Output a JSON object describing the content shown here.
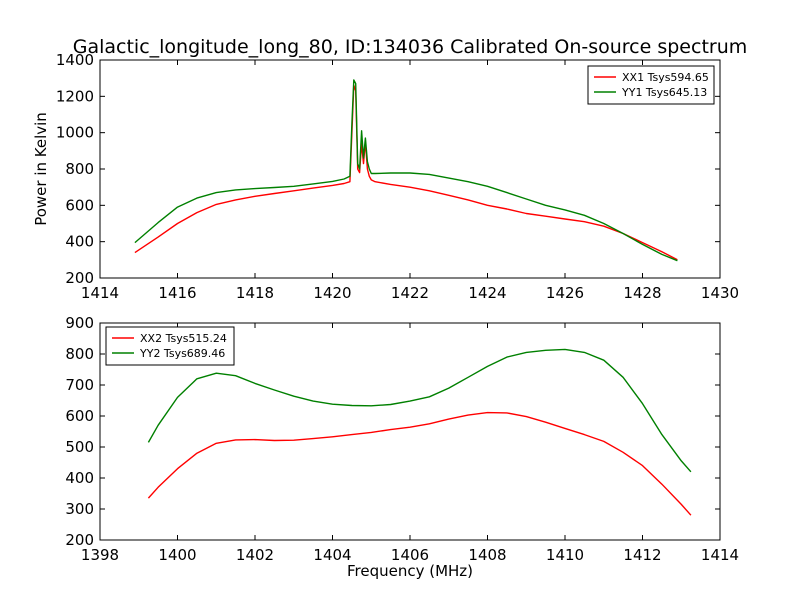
{
  "title": "Galactic_longitude_long_80, ID:134036 Calibrated On-source spectrum",
  "chart_data": [
    {
      "type": "line",
      "ylabel": "Power in Kelvin",
      "xlabel": "",
      "xlim": [
        1414,
        1430
      ],
      "ylim": [
        200,
        1400
      ],
      "xticks": [
        1414,
        1416,
        1418,
        1420,
        1422,
        1424,
        1426,
        1428,
        1430
      ],
      "yticks": [
        200,
        400,
        600,
        800,
        1000,
        1200,
        1400
      ],
      "legend_position": "top-right",
      "series": [
        {
          "name": "XX1 Tsys594.65",
          "color": "#ff0000",
          "x": [
            1414.9,
            1415.5,
            1416.0,
            1416.5,
            1417.0,
            1417.5,
            1418.0,
            1418.5,
            1419.0,
            1419.5,
            1420.0,
            1420.3,
            1420.45,
            1420.5,
            1420.55,
            1420.6,
            1420.65,
            1420.7,
            1420.75,
            1420.8,
            1420.85,
            1420.9,
            1420.95,
            1421.0,
            1421.1,
            1421.5,
            1422.0,
            1422.5,
            1423.0,
            1423.5,
            1424.0,
            1424.5,
            1425.0,
            1425.5,
            1426.0,
            1426.5,
            1427.0,
            1427.5,
            1428.0,
            1428.5,
            1428.9
          ],
          "y": [
            340,
            425,
            500,
            560,
            605,
            630,
            650,
            665,
            680,
            695,
            710,
            720,
            730,
            1000,
            1260,
            1230,
            800,
            780,
            940,
            830,
            950,
            800,
            760,
            740,
            730,
            715,
            700,
            680,
            655,
            630,
            600,
            580,
            555,
            540,
            525,
            510,
            485,
            445,
            395,
            345,
            300
          ]
        },
        {
          "name": "YY1 Tsys645.13",
          "color": "#008000",
          "x": [
            1414.9,
            1415.5,
            1416.0,
            1416.5,
            1417.0,
            1417.5,
            1418.0,
            1418.5,
            1419.0,
            1419.5,
            1420.0,
            1420.3,
            1420.45,
            1420.5,
            1420.55,
            1420.6,
            1420.65,
            1420.7,
            1420.75,
            1420.8,
            1420.85,
            1420.9,
            1420.95,
            1421.0,
            1421.1,
            1421.5,
            1422.0,
            1422.5,
            1423.0,
            1423.5,
            1424.0,
            1424.5,
            1425.0,
            1425.5,
            1426.0,
            1426.5,
            1427.0,
            1427.5,
            1428.0,
            1428.5,
            1428.9
          ],
          "y": [
            395,
            505,
            590,
            640,
            670,
            685,
            692,
            698,
            705,
            718,
            732,
            745,
            760,
            1050,
            1290,
            1270,
            830,
            800,
            1010,
            860,
            970,
            840,
            800,
            775,
            775,
            778,
            778,
            770,
            750,
            730,
            705,
            670,
            635,
            600,
            575,
            545,
            500,
            445,
            385,
            330,
            295
          ]
        }
      ]
    },
    {
      "type": "line",
      "ylabel": "",
      "xlabel": "Frequency (MHz)",
      "xlim": [
        1398,
        1414
      ],
      "ylim": [
        200,
        900
      ],
      "xticks": [
        1398,
        1400,
        1402,
        1404,
        1406,
        1408,
        1410,
        1412,
        1414
      ],
      "yticks": [
        200,
        300,
        400,
        500,
        600,
        700,
        800,
        900
      ],
      "legend_position": "top-left",
      "series": [
        {
          "name": "XX2 Tsys515.24",
          "color": "#ff0000",
          "x": [
            1399.25,
            1399.5,
            1400.0,
            1400.5,
            1401.0,
            1401.5,
            1402.0,
            1402.5,
            1403.0,
            1403.5,
            1404.0,
            1404.5,
            1405.0,
            1405.5,
            1406.0,
            1406.5,
            1407.0,
            1407.5,
            1408.0,
            1408.5,
            1409.0,
            1409.5,
            1410.0,
            1410.5,
            1411.0,
            1411.5,
            1412.0,
            1412.5,
            1413.0,
            1413.25
          ],
          "y": [
            335,
            370,
            430,
            480,
            512,
            523,
            524,
            521,
            522,
            527,
            533,
            540,
            547,
            556,
            564,
            575,
            590,
            603,
            611,
            610,
            598,
            580,
            560,
            540,
            518,
            483,
            440,
            380,
            315,
            280
          ]
        },
        {
          "name": "YY2 Tsys689.46",
          "color": "#008000",
          "x": [
            1399.25,
            1399.5,
            1400.0,
            1400.5,
            1401.0,
            1401.5,
            1402.0,
            1402.5,
            1403.0,
            1403.5,
            1404.0,
            1404.5,
            1405.0,
            1405.5,
            1406.0,
            1406.5,
            1407.0,
            1407.5,
            1408.0,
            1408.5,
            1409.0,
            1409.5,
            1410.0,
            1410.5,
            1411.0,
            1411.5,
            1412.0,
            1412.5,
            1413.0,
            1413.25
          ],
          "y": [
            515,
            570,
            660,
            720,
            738,
            730,
            705,
            684,
            664,
            648,
            638,
            634,
            633,
            637,
            648,
            662,
            690,
            725,
            760,
            790,
            805,
            812,
            815,
            805,
            780,
            725,
            640,
            540,
            455,
            420
          ]
        }
      ]
    }
  ]
}
